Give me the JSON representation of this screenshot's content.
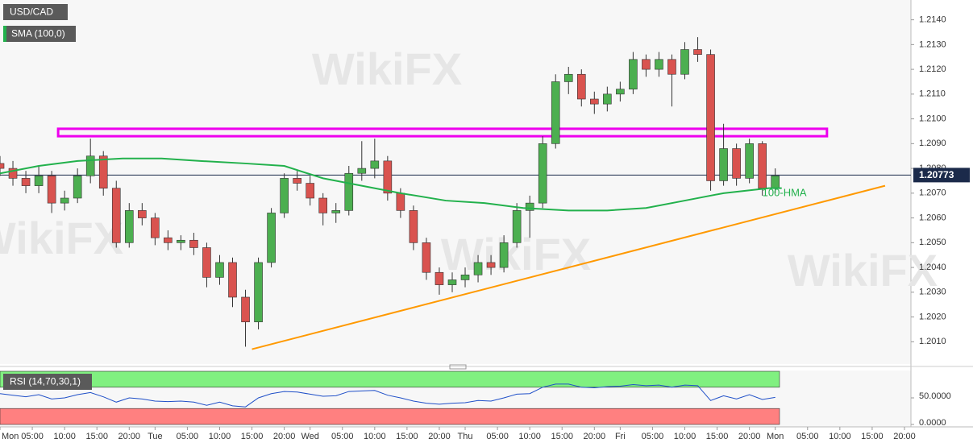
{
  "chart_data": [
    {
      "type": "candlestick",
      "title": "USD/CAD",
      "watermark": "WikiFX",
      "x": [
        0,
        2,
        4,
        6,
        8,
        10,
        12,
        14,
        16,
        18,
        20,
        22,
        24,
        26,
        28,
        30,
        32,
        34,
        36,
        38,
        40,
        42,
        44,
        46,
        48,
        50,
        52,
        54,
        56,
        58,
        60,
        62,
        64,
        66,
        68,
        70,
        72,
        74,
        76,
        78,
        80,
        82,
        84,
        86,
        88,
        90,
        92,
        94,
        96,
        98,
        100,
        102,
        104,
        106,
        108,
        110,
        112,
        114,
        116,
        118,
        120
      ],
      "open": [
        1.2082,
        1.208,
        1.2076,
        1.2073,
        1.2077,
        1.2066,
        1.2068,
        1.2077,
        1.2085,
        1.2072,
        1.205,
        1.2063,
        1.206,
        1.2052,
        1.205,
        1.2051,
        1.2048,
        1.2036,
        1.2042,
        1.2028,
        1.2018,
        1.2042,
        1.2062,
        1.2076,
        1.2074,
        1.2068,
        1.2062,
        1.2063,
        1.2078,
        1.208,
        1.2083,
        1.207,
        1.2063,
        1.205,
        1.2038,
        1.2033,
        1.2035,
        1.2037,
        1.2042,
        1.204,
        1.205,
        1.2063,
        1.2066,
        1.209,
        1.2115,
        1.2118,
        1.2108,
        1.2106,
        1.211,
        1.2112,
        1.2124,
        1.212,
        1.2124,
        1.2118,
        1.2128,
        1.2126,
        1.2075,
        1.2088,
        1.2076,
        1.209,
        1.2072
      ],
      "high": [
        1.2085,
        1.2083,
        1.2079,
        1.2081,
        1.2079,
        1.2071,
        1.208,
        1.2092,
        1.2087,
        1.2075,
        1.2066,
        1.2066,
        1.2062,
        1.2055,
        1.2053,
        1.2054,
        1.205,
        1.2045,
        1.2044,
        1.2031,
        1.2044,
        1.2064,
        1.2078,
        1.2079,
        1.2077,
        1.207,
        1.2066,
        1.2081,
        1.2091,
        1.2092,
        1.2085,
        1.2072,
        1.2065,
        1.2052,
        1.204,
        1.2038,
        1.204,
        1.2045,
        1.2045,
        1.2053,
        1.2066,
        1.2069,
        1.2093,
        1.2118,
        1.2121,
        1.212,
        1.2111,
        1.2113,
        1.2115,
        1.2127,
        1.2126,
        1.2127,
        1.2126,
        1.2131,
        1.2133,
        1.2128,
        1.2098,
        1.209,
        1.2092,
        1.2091,
        1.208
      ],
      "low": [
        1.2077,
        1.2073,
        1.207,
        1.207,
        1.2062,
        1.2063,
        1.2066,
        1.2074,
        1.2069,
        1.2048,
        1.2048,
        1.2057,
        1.2049,
        1.2047,
        1.2047,
        1.2045,
        1.2032,
        1.2033,
        1.2024,
        1.2008,
        1.2015,
        1.204,
        1.206,
        1.2071,
        1.2065,
        1.2057,
        1.2058,
        1.2061,
        1.2075,
        1.2076,
        1.2067,
        1.206,
        1.2047,
        1.2035,
        1.2029,
        1.203,
        1.2032,
        1.2034,
        1.2037,
        1.2038,
        1.2048,
        1.2052,
        1.2064,
        1.2088,
        1.211,
        1.2105,
        1.2102,
        1.2103,
        1.2107,
        1.211,
        1.2117,
        1.2117,
        1.2105,
        1.2116,
        1.2123,
        1.2071,
        1.2073,
        1.2073,
        1.2074,
        1.2069,
        1.207
      ],
      "close": [
        1.208,
        1.2076,
        1.2073,
        1.2077,
        1.2066,
        1.2068,
        1.2077,
        1.2085,
        1.2072,
        1.205,
        1.2063,
        1.206,
        1.2052,
        1.205,
        1.2051,
        1.2048,
        1.2036,
        1.2042,
        1.2028,
        1.2018,
        1.2042,
        1.2062,
        1.2076,
        1.2074,
        1.2068,
        1.2062,
        1.2063,
        1.2078,
        1.208,
        1.2083,
        1.207,
        1.2063,
        1.205,
        1.2038,
        1.2033,
        1.2035,
        1.2037,
        1.2042,
        1.204,
        1.205,
        1.2063,
        1.2066,
        1.209,
        1.2115,
        1.2118,
        1.2108,
        1.2106,
        1.211,
        1.2112,
        1.2124,
        1.212,
        1.2124,
        1.2118,
        1.2128,
        1.2126,
        1.2075,
        1.2088,
        1.2076,
        1.209,
        1.2072,
        1.2077
      ],
      "up_color": "#4caf50",
      "down_color": "#d9534f",
      "lines": [
        {
          "name": "SMA (100,0)",
          "color": "#22b14c",
          "x": [
            0,
            6,
            12,
            19,
            25,
            31,
            38,
            44,
            50,
            56,
            62,
            69,
            75,
            81,
            88,
            94,
            100,
            106,
            112,
            119,
            121
          ],
          "values": [
            1.2078,
            1.2081,
            1.2083,
            1.2084,
            1.2084,
            1.2083,
            1.2082,
            1.2081,
            1.2076,
            1.2073,
            1.207,
            1.2067,
            1.2066,
            1.2064,
            1.2063,
            1.2063,
            1.2064,
            1.2067,
            1.207,
            1.2072,
            1.2072
          ]
        },
        {
          "color": "#ff9900",
          "x": [
            39,
            137
          ],
          "values": [
            1.2007,
            1.2073
          ]
        }
      ],
      "zone": {
        "color": "#ee00ee",
        "x": [
          9,
          128
        ],
        "y": [
          1.2093,
          1.2096
        ]
      },
      "last_price": 1.20773,
      "last_price_color": "#1b2a4a",
      "annotation": {
        "text": "100-HMA",
        "x": 118,
        "y": 1.207
      },
      "xlim": [
        0,
        141
      ],
      "ylim": [
        1.2001,
        1.2148
      ],
      "xticks": [
        {
          "value": 0,
          "label": "Mon"
        },
        {
          "value": 5,
          "label": "05:00"
        },
        {
          "value": 10,
          "label": "10:00"
        },
        {
          "value": 15,
          "label": "15:00"
        },
        {
          "value": 20,
          "label": "20:00"
        },
        {
          "value": 24,
          "label": "Tue"
        },
        {
          "value": 29,
          "label": "05:00"
        },
        {
          "value": 34,
          "label": "10:00"
        },
        {
          "value": 39,
          "label": "15:00"
        },
        {
          "value": 44,
          "label": "20:00"
        },
        {
          "value": 48,
          "label": "Wed"
        },
        {
          "value": 53,
          "label": "05:00"
        },
        {
          "value": 58,
          "label": "10:00"
        },
        {
          "value": 63,
          "label": "15:00"
        },
        {
          "value": 68,
          "label": "20:00"
        },
        {
          "value": 72,
          "label": "Thu"
        },
        {
          "value": 77,
          "label": "05:00"
        },
        {
          "value": 82,
          "label": "10:00"
        },
        {
          "value": 87,
          "label": "15:00"
        },
        {
          "value": 92,
          "label": "20:00"
        },
        {
          "value": 96,
          "label": "Fri"
        },
        {
          "value": 101,
          "label": "05:00"
        },
        {
          "value": 106,
          "label": "10:00"
        },
        {
          "value": 111,
          "label": "15:00"
        },
        {
          "value": 116,
          "label": "20:00"
        },
        {
          "value": 120,
          "label": "Mon"
        },
        {
          "value": 125,
          "label": "05:00"
        },
        {
          "value": 130,
          "label": "10:00"
        },
        {
          "value": 135,
          "label": "15:00"
        },
        {
          "value": 140,
          "label": "20:00"
        }
      ],
      "yticks": [
        {
          "value": 1.201,
          "label": "1.2010"
        },
        {
          "value": 1.202,
          "label": "1.2020"
        },
        {
          "value": 1.203,
          "label": "1.2030"
        },
        {
          "value": 1.204,
          "label": "1.2040"
        },
        {
          "value": 1.205,
          "label": "1.2050"
        },
        {
          "value": 1.206,
          "label": "1.2060"
        },
        {
          "value": 1.207,
          "label": "1.2070"
        },
        {
          "value": 1.208,
          "label": "1.2080"
        },
        {
          "value": 1.209,
          "label": "1.2090"
        },
        {
          "value": 1.21,
          "label": "1.2100"
        },
        {
          "value": 1.211,
          "label": "1.2110"
        },
        {
          "value": 1.212,
          "label": "1.2120"
        },
        {
          "value": 1.213,
          "label": "1.2130"
        },
        {
          "value": 1.214,
          "label": "1.2140"
        }
      ]
    },
    {
      "type": "line",
      "title": "RSI (14,70,30,1)",
      "x": [
        0,
        2,
        4,
        6,
        8,
        10,
        12,
        14,
        16,
        18,
        20,
        22,
        24,
        26,
        28,
        30,
        32,
        34,
        36,
        38,
        40,
        42,
        44,
        46,
        48,
        50,
        52,
        54,
        56,
        58,
        60,
        62,
        64,
        66,
        68,
        70,
        72,
        74,
        76,
        78,
        80,
        82,
        84,
        86,
        88,
        90,
        92,
        94,
        96,
        98,
        100,
        102,
        104,
        106,
        108,
        110,
        112,
        114,
        116,
        118,
        120
      ],
      "series": [
        {
          "color": "#1f4fc8",
          "values": [
            58,
            55,
            52,
            56,
            48,
            50,
            56,
            60,
            52,
            42,
            50,
            48,
            44,
            43,
            44,
            42,
            36,
            42,
            35,
            33,
            50,
            58,
            62,
            61,
            57,
            53,
            54,
            62,
            63,
            64,
            55,
            50,
            44,
            40,
            38,
            40,
            41,
            45,
            44,
            50,
            57,
            58,
            70,
            76,
            76,
            70,
            69,
            71,
            72,
            75,
            73,
            74,
            70,
            74,
            73,
            45,
            54,
            48,
            56,
            47,
            51
          ]
        }
      ],
      "bands": [
        {
          "range": [
            70,
            100
          ],
          "color": "#80f080"
        },
        {
          "range": [
            0,
            30
          ],
          "color": "#ff8080"
        }
      ],
      "ylim": [
        0,
        100
      ],
      "yticks": [
        {
          "value": 0,
          "label": "0.0000"
        },
        {
          "value": 50,
          "label": "50.0000"
        }
      ]
    }
  ]
}
